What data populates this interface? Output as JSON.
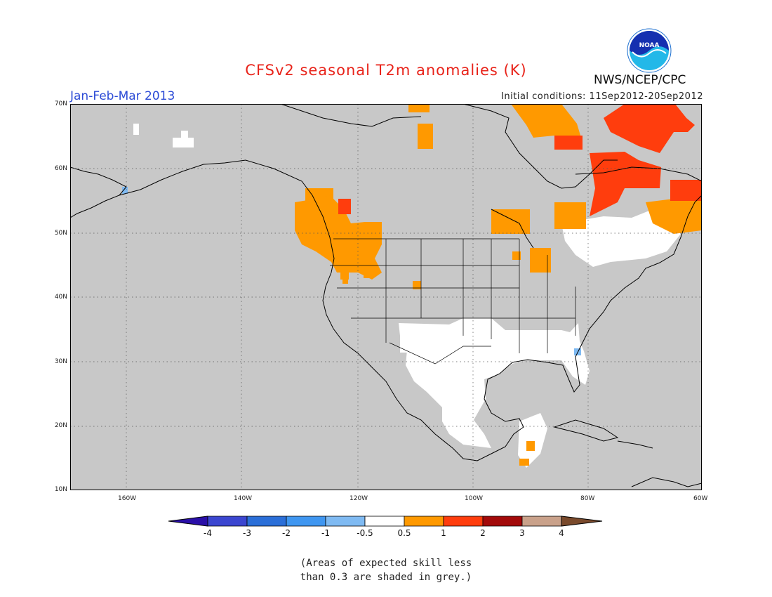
{
  "title": "CFSv2 seasonal T2m anomalies (K)",
  "period": "Jan-Feb-Mar 2013",
  "initial_conditions": "Initial conditions: 11Sep2012-20Sep2012",
  "agency": "NWS/NCEP/CPC",
  "logo_text": "NOAA",
  "map": {
    "lon_labels": [
      "160W",
      "140W",
      "120W",
      "100W",
      "80W",
      "60W"
    ],
    "lat_labels": [
      "70N",
      "60N",
      "50N",
      "40N",
      "30N",
      "20N",
      "10N"
    ]
  },
  "colorbar": {
    "labels": [
      "-4",
      "-3",
      "-2",
      "-1",
      "-0.5",
      "0.5",
      "1",
      "2",
      "3",
      "4"
    ],
    "colors": [
      "#2a0fa8",
      "#3b46d0",
      "#2b6fd8",
      "#3f96f0",
      "#7fbaf2",
      "#ffffff",
      "#ff9900",
      "#ff3d0d",
      "#a30a0a",
      "#c9a18a",
      "#7a4a2c"
    ]
  },
  "note_line1": "(Areas of expected skill less",
  "note_line2": "than 0.3 are shaded in grey.)"
}
